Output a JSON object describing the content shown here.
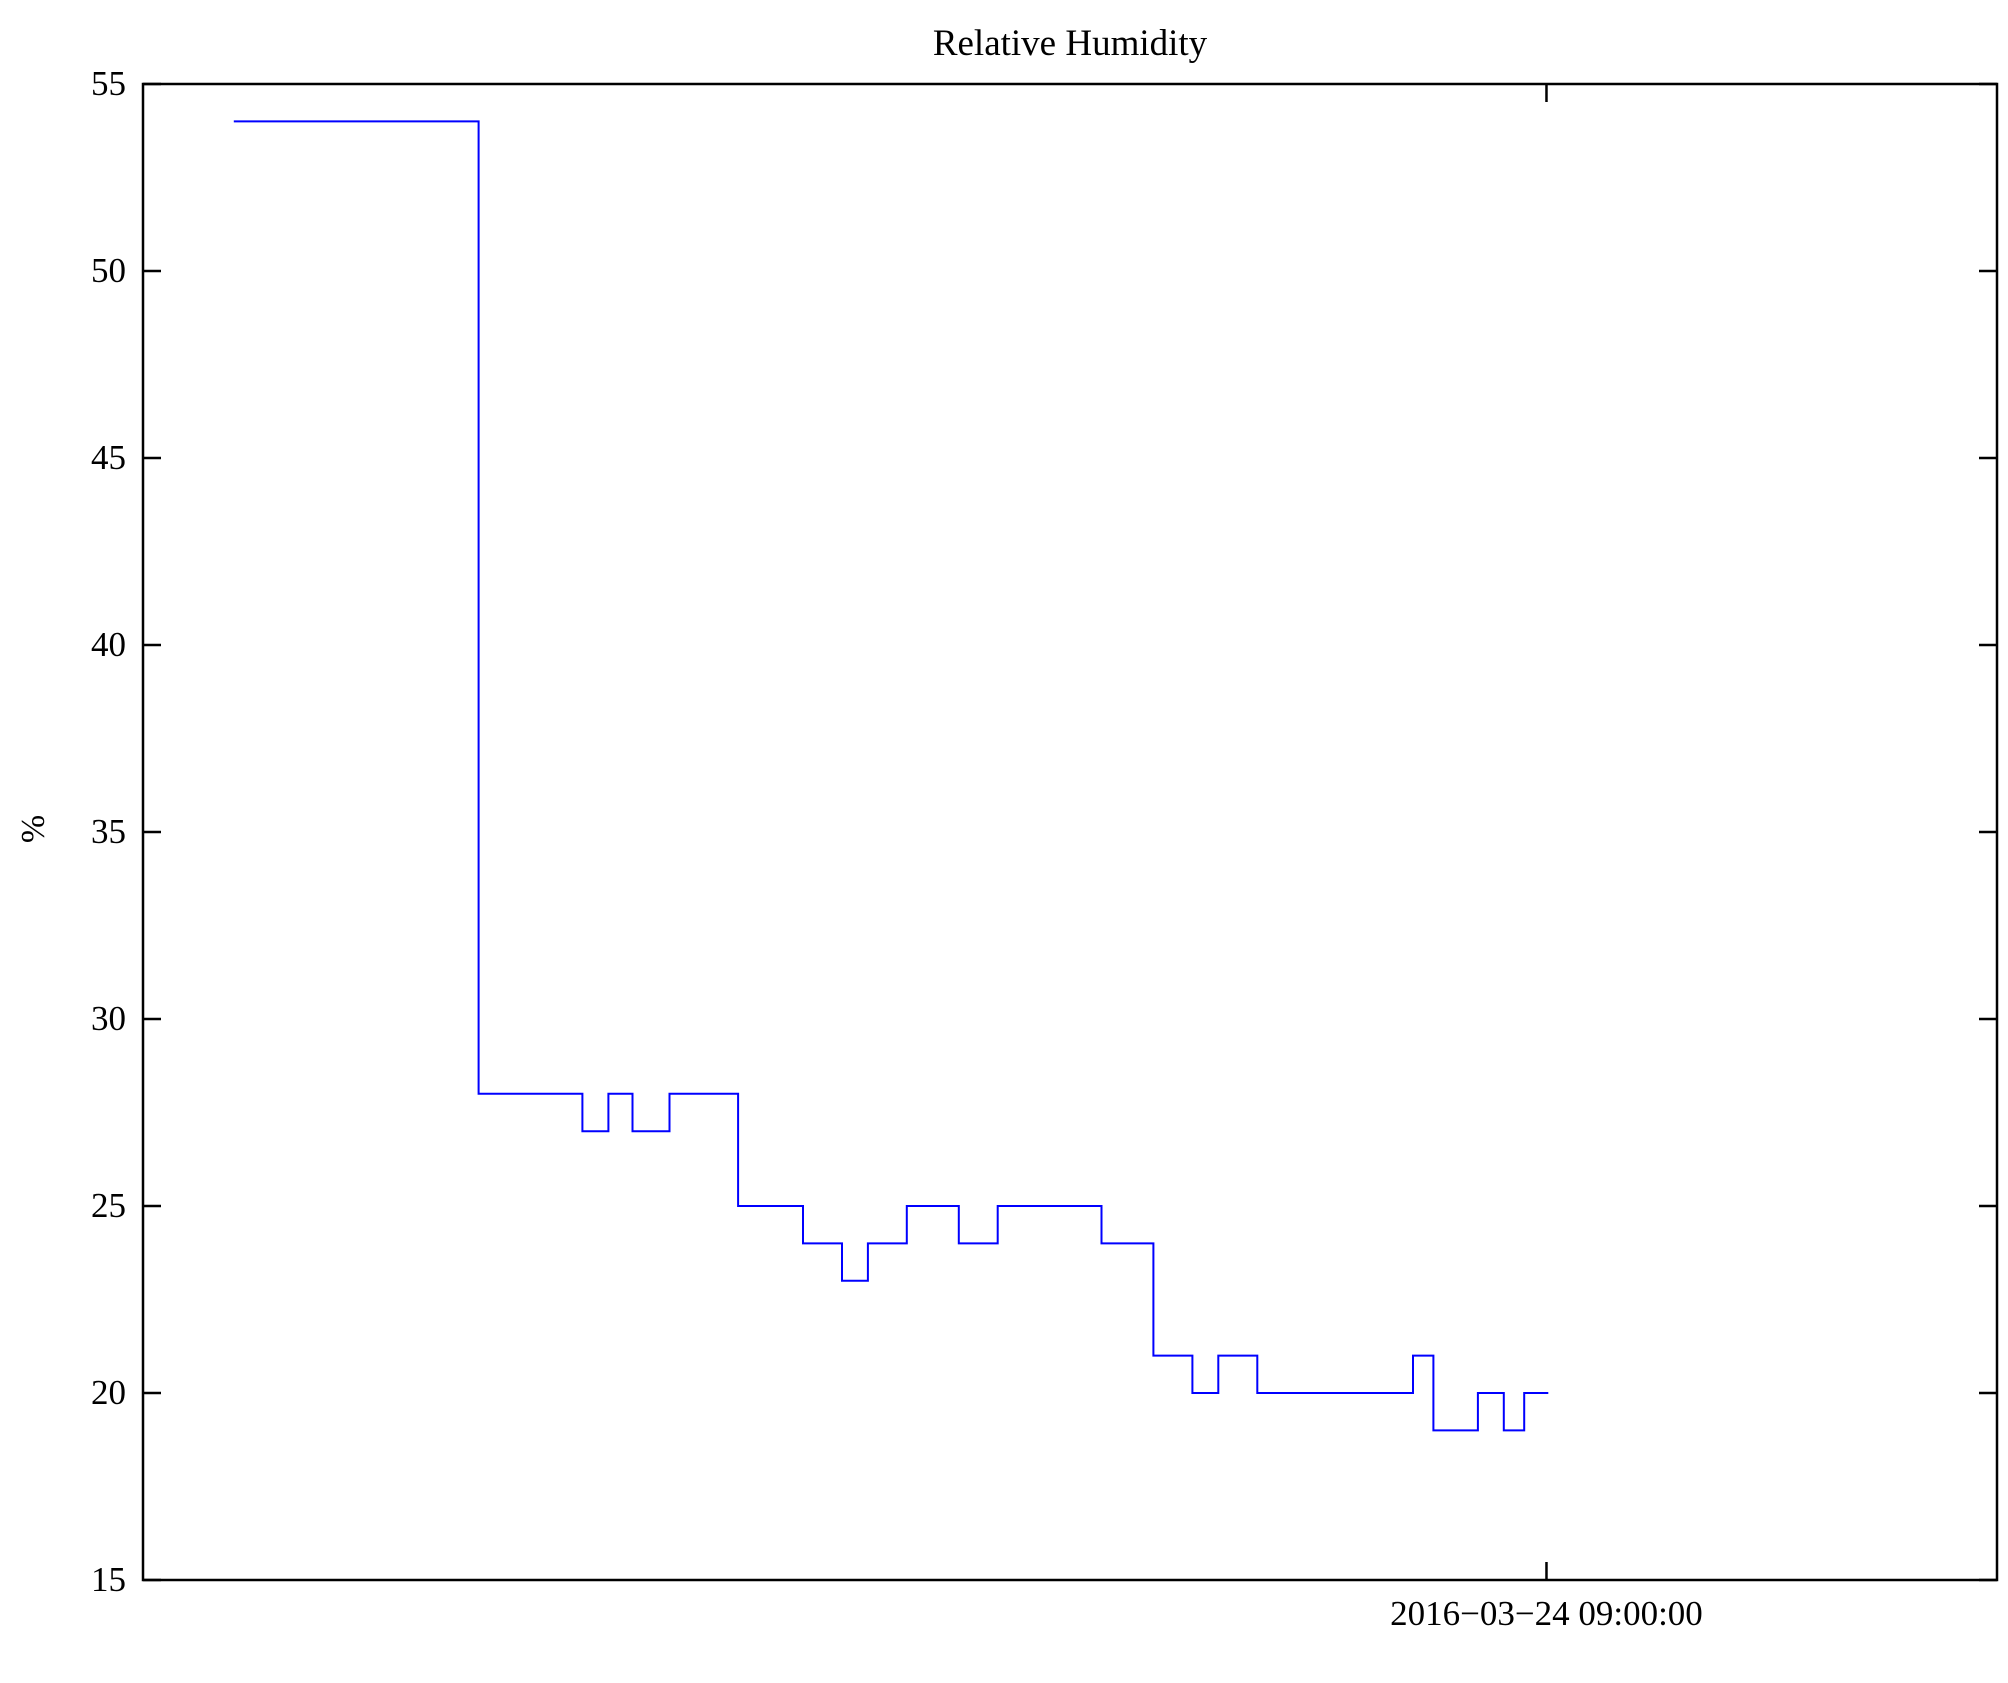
{
  "figure": {
    "background": "#ffffff",
    "axis_color": "#000000"
  },
  "chart_data": {
    "type": "line",
    "subtype": "step-post",
    "title": "Relative Humidity",
    "ylabel": "%",
    "xlabel": "",
    "series_name": "Relative Humidity",
    "line_color": "#0000ff",
    "axis_color": "#000000",
    "grid": false,
    "legend": false,
    "ylim": [
      15,
      55
    ],
    "yticks": [
      55,
      50,
      45,
      40,
      35,
      30,
      25,
      20,
      15
    ],
    "x_axis": {
      "tick_frac": 0.757,
      "tick_label": "2016−03−24 09:00:00"
    },
    "steps": [
      {
        "x": 0.049,
        "v": 54
      },
      {
        "x": 0.181,
        "v": 28
      },
      {
        "x": 0.237,
        "v": 27
      },
      {
        "x": 0.251,
        "v": 28
      },
      {
        "x": 0.264,
        "v": 27
      },
      {
        "x": 0.284,
        "v": 28
      },
      {
        "x": 0.321,
        "v": 25
      },
      {
        "x": 0.356,
        "v": 24
      },
      {
        "x": 0.377,
        "v": 23
      },
      {
        "x": 0.391,
        "v": 24
      },
      {
        "x": 0.412,
        "v": 25
      },
      {
        "x": 0.44,
        "v": 24
      },
      {
        "x": 0.461,
        "v": 25
      },
      {
        "x": 0.517,
        "v": 24
      },
      {
        "x": 0.545,
        "v": 21
      },
      {
        "x": 0.566,
        "v": 20
      },
      {
        "x": 0.58,
        "v": 21
      },
      {
        "x": 0.601,
        "v": 20
      },
      {
        "x": 0.685,
        "v": 21
      },
      {
        "x": 0.696,
        "v": 19
      },
      {
        "x": 0.72,
        "v": 20
      },
      {
        "x": 0.734,
        "v": 19
      },
      {
        "x": 0.745,
        "v": 20
      }
    ],
    "x_end_frac": 0.758
  }
}
